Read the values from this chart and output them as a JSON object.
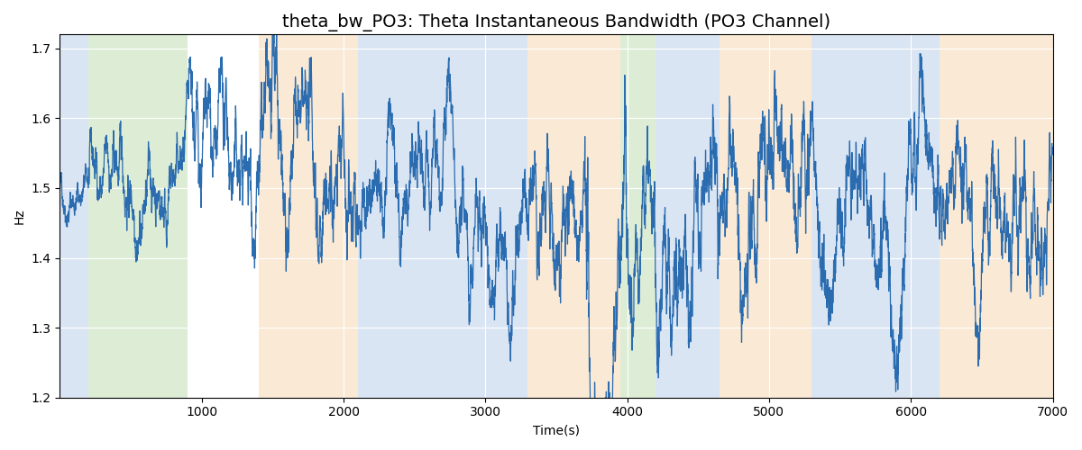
{
  "title": "theta_bw_PO3: Theta Instantaneous Bandwidth (PO3 Channel)",
  "xlabel": "Time(s)",
  "ylabel": "Hz",
  "xlim": [
    0,
    7000
  ],
  "ylim": [
    1.2,
    1.72
  ],
  "yticks": [
    1.2,
    1.3,
    1.4,
    1.5,
    1.6,
    1.7
  ],
  "xticks": [
    1000,
    2000,
    3000,
    4000,
    5000,
    6000,
    7000
  ],
  "line_color": "#2a6caf",
  "line_width": 0.9,
  "background_color": "#ffffff",
  "shading_regions": [
    {
      "xmin": 0,
      "xmax": 200,
      "color": "#aec6e8",
      "alpha": 0.45
    },
    {
      "xmin": 200,
      "xmax": 900,
      "color": "#b5d9a3",
      "alpha": 0.45
    },
    {
      "xmin": 1400,
      "xmax": 2100,
      "color": "#f5cfa0",
      "alpha": 0.45
    },
    {
      "xmin": 2100,
      "xmax": 3300,
      "color": "#aec6e8",
      "alpha": 0.45
    },
    {
      "xmin": 3300,
      "xmax": 3950,
      "color": "#f5cfa0",
      "alpha": 0.45
    },
    {
      "xmin": 3950,
      "xmax": 4200,
      "color": "#b5d9a3",
      "alpha": 0.45
    },
    {
      "xmin": 4200,
      "xmax": 4650,
      "color": "#aec6e8",
      "alpha": 0.45
    },
    {
      "xmin": 4650,
      "xmax": 5300,
      "color": "#f5cfa0",
      "alpha": 0.45
    },
    {
      "xmin": 5300,
      "xmax": 6200,
      "color": "#aec6e8",
      "alpha": 0.45
    },
    {
      "xmin": 6200,
      "xmax": 7000,
      "color": "#f5cfa0",
      "alpha": 0.45
    }
  ],
  "seed": 42,
  "mean": 1.5,
  "n_points": 7000,
  "ar_coef": 0.982,
  "base_std": 0.012,
  "title_fontsize": 14,
  "grid_color": "white",
  "grid_linewidth": 0.8
}
